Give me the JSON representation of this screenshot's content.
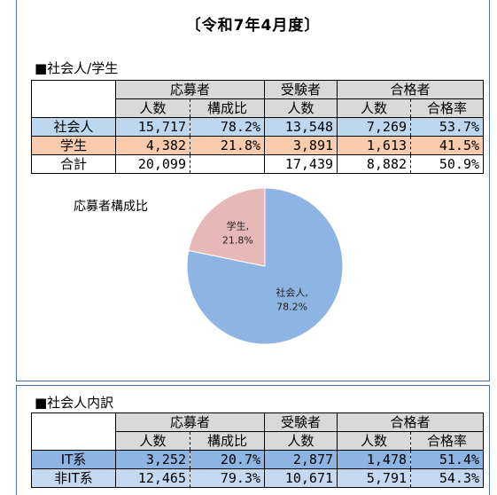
{
  "title": "〔令和7年4月度〕",
  "section1": {
    "label": "■社会人/学生",
    "header_groups": [
      "応募者",
      "受験者",
      "合格者"
    ],
    "sub_headers": [
      "人数",
      "構成比",
      "人数",
      "人数",
      "合格率"
    ],
    "rows": [
      {
        "name": "社会人",
        "applicants": "15,717",
        "ratio": "78.2%",
        "examinees": "13,548",
        "passed": "7,269",
        "pass_rate": "53.7%"
      },
      {
        "name": "学生",
        "applicants": "4,382",
        "ratio": "21.8%",
        "examinees": "3,891",
        "passed": "1,613",
        "pass_rate": "41.5%"
      },
      {
        "name": "合計",
        "applicants": "20,099",
        "ratio": "",
        "examinees": "17,439",
        "passed": "8,882",
        "pass_rate": "50.9%"
      }
    ]
  },
  "chart_data": {
    "type": "pie",
    "title": "応募者構成比",
    "categories": [
      "社会人",
      "学生"
    ],
    "values": [
      78.2,
      21.8
    ],
    "labels": [
      "社会人,",
      "学生,"
    ],
    "value_labels": [
      "78.2%",
      "21.8%"
    ],
    "colors": [
      "#8eb4e3",
      "#e6b8b7"
    ]
  },
  "section2": {
    "label": "■社会人内訳",
    "header_groups": [
      "応募者",
      "受験者",
      "合格者"
    ],
    "sub_headers": [
      "人数",
      "構成比",
      "人数",
      "人数",
      "合格率"
    ],
    "rows": [
      {
        "name": "IT系",
        "applicants": "3,252",
        "ratio": "20.7%",
        "examinees": "2,877",
        "passed": "1,478",
        "pass_rate": "51.4%"
      },
      {
        "name": "非IT系",
        "applicants": "12,465",
        "ratio": "79.3%",
        "examinees": "10,671",
        "passed": "5,791",
        "pass_rate": "54.3%"
      }
    ]
  }
}
